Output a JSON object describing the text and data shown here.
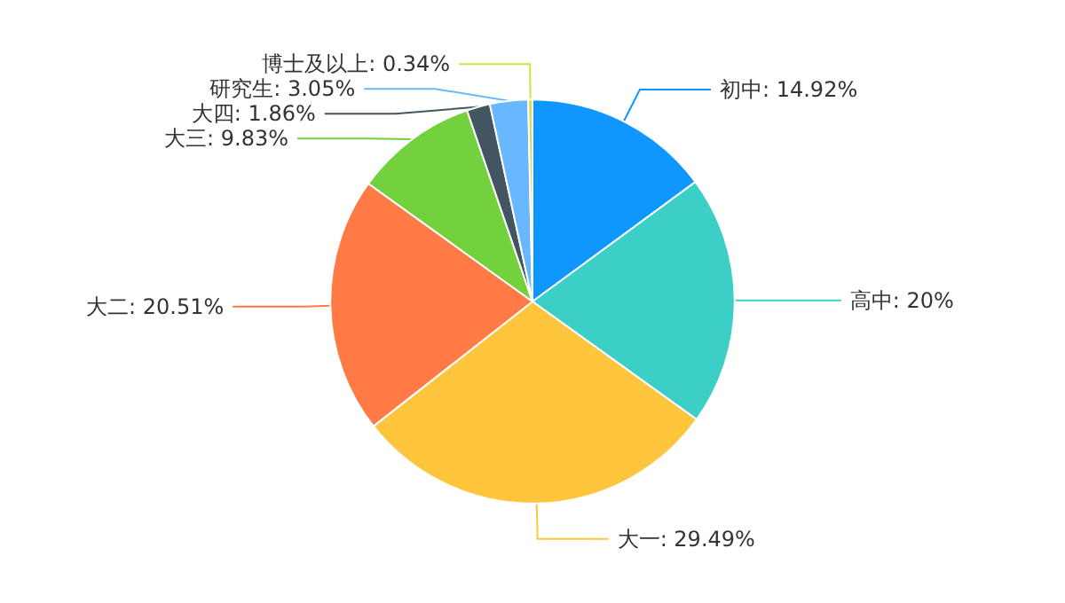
{
  "chart_data": {
    "type": "pie",
    "categories": [
      "初中",
      "高中",
      "大一",
      "大二",
      "大三",
      "大四",
      "研究生",
      "博士及以上"
    ],
    "values": [
      14.92,
      20,
      29.49,
      20.51,
      9.83,
      1.86,
      3.05,
      0.34
    ],
    "value_labels": [
      "14.92%",
      "20%",
      "29.49%",
      "20.51%",
      "9.83%",
      "1.86%",
      "3.05%",
      "0.34%"
    ],
    "colors": [
      "#0d97ff",
      "#3ccfc7",
      "#ffc53d",
      "#ff7a45",
      "#73d13d",
      "#435560",
      "#69b8ff",
      "#d3e048"
    ],
    "legend": false
  }
}
